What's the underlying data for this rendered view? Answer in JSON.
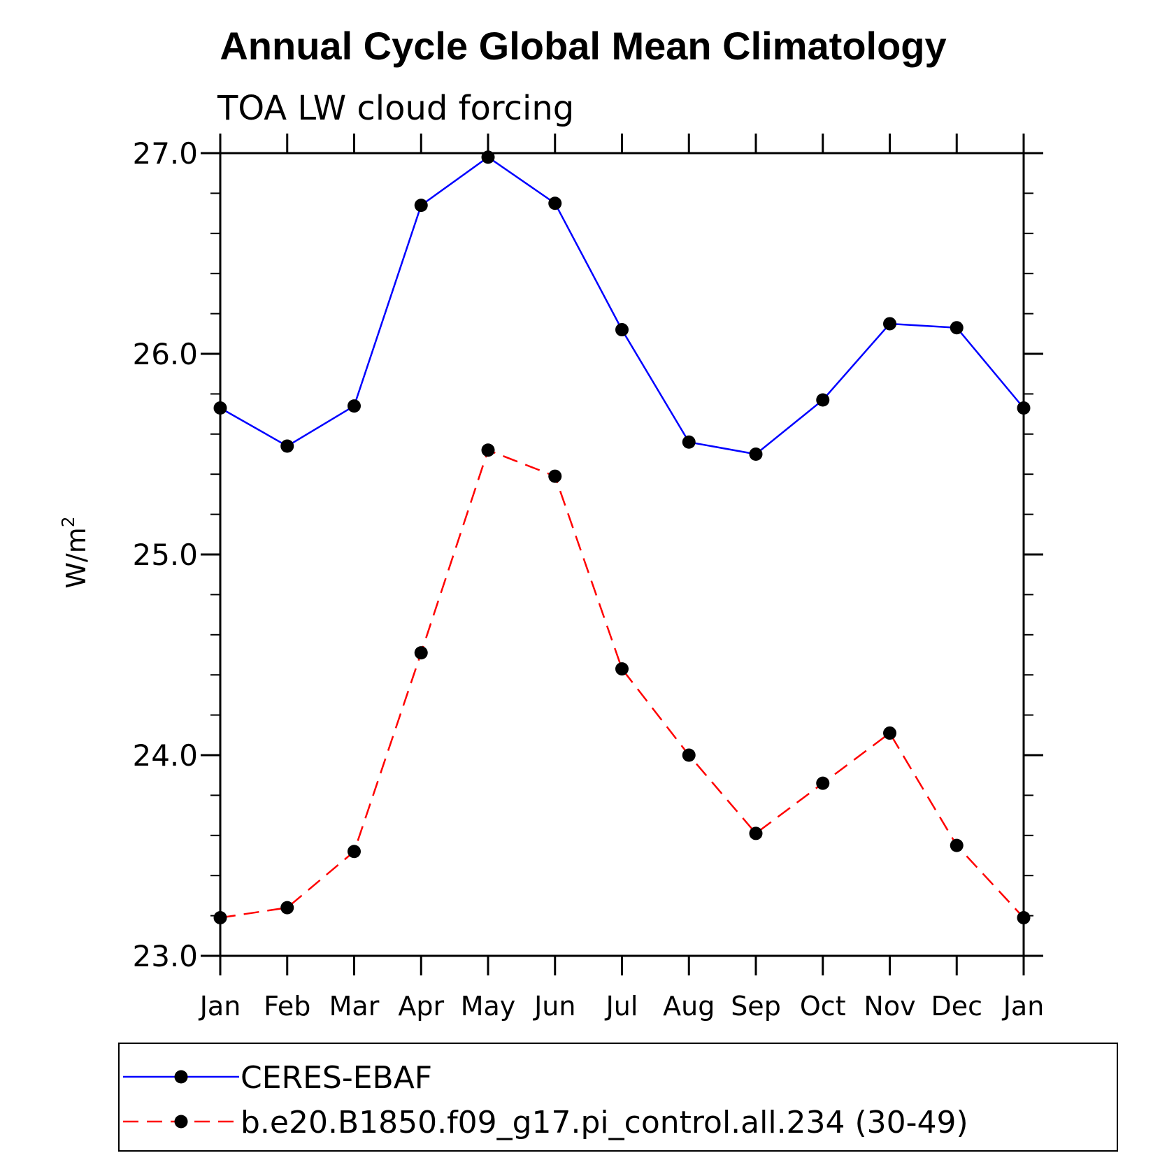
{
  "colors": {
    "ceres": "#0000ff",
    "model": "#ff0000",
    "marker": "#000000",
    "axis": "#000000"
  },
  "chart_data": {
    "type": "line",
    "title": "Annual Cycle Global Mean Climatology",
    "subtitle": "TOA LW cloud forcing",
    "ylabel": "W/m",
    "ylabel_sup": "2",
    "xlabel": "",
    "ylim": [
      23.0,
      27.0
    ],
    "yticks": [
      "23.0",
      "24.0",
      "25.0",
      "26.0",
      "27.0"
    ],
    "categories": [
      "Jan",
      "Feb",
      "Mar",
      "Apr",
      "May",
      "Jun",
      "Jul",
      "Aug",
      "Sep",
      "Oct",
      "Nov",
      "Dec",
      "Jan"
    ],
    "legend_position": "bottom",
    "grid": false,
    "series": [
      {
        "name": "CERES-EBAF",
        "style": "solid",
        "values": [
          25.73,
          25.54,
          25.74,
          26.74,
          26.98,
          26.75,
          26.12,
          25.56,
          25.5,
          25.77,
          26.15,
          26.13,
          25.73
        ]
      },
      {
        "name": "b.e20.B1850.f09_g17.pi_control.all.234 (30-49)",
        "style": "dashed",
        "values": [
          23.19,
          23.24,
          23.52,
          24.51,
          25.52,
          25.39,
          24.43,
          24.0,
          23.61,
          23.86,
          24.11,
          23.55,
          23.19
        ]
      }
    ]
  }
}
